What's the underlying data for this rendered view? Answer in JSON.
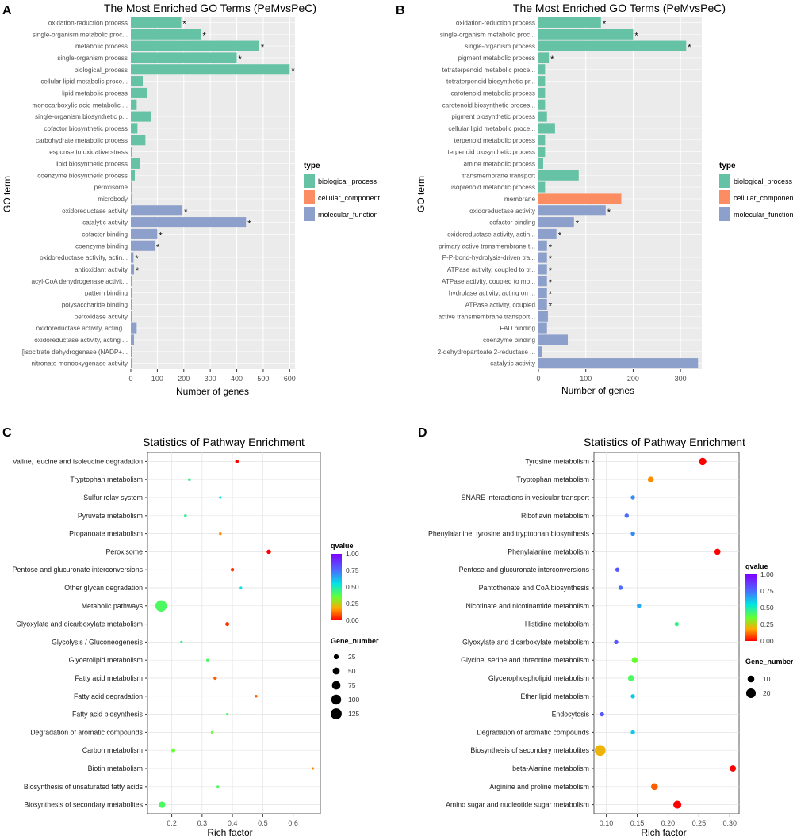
{
  "panel_labels": [
    "A",
    "B",
    "C",
    "D"
  ],
  "colors": {
    "biological_process": "#66c2a5",
    "cellular_component": "#fc8d62",
    "molecular_function": "#8da0cb",
    "panel_bg": "#ebebeb",
    "grid": "#ffffff"
  },
  "chart_data": [
    {
      "type": "bar",
      "panel": "A",
      "title": "The Most Enriched GO Terms (PeMvsPeC)",
      "xlabel": "Number of genes",
      "ylabel": "GO term",
      "xlim": [
        0,
        620
      ],
      "xticks": [
        0,
        100,
        200,
        300,
        400,
        500,
        600
      ],
      "legend": {
        "title": "type",
        "entries": [
          "biological_process",
          "cellular_component",
          "molecular_function"
        ]
      },
      "categories": [
        "oxidation-reduction process",
        "single-organism metabolic proc...",
        "metabolic process",
        "single-organism process",
        "biological_process",
        "cellular lipid metabolic proce...",
        "lipid metabolic process",
        "monocarboxylic acid metabolic ...",
        "single-organism biosynthetic p...",
        "cofactor biosynthetic process",
        "carbohydrate metabolic process",
        "response to oxidative stress",
        "lipid biosynthetic process",
        "coenzyme biosynthetic process",
        "peroxisome",
        "microbody",
        "oxidoreductase activity",
        "catalytic activity",
        "cofactor binding",
        "coenzyme binding",
        "oxidoreductase activity, actin...",
        "antioxidant activity",
        "acyl-CoA dehydrogenase activit...",
        "pattern binding",
        "polysaccharide binding",
        "peroxidase activity",
        "oxidoreductase activity, acting...",
        "oxidoreductase activity, acting ...",
        "[isocitrate dehydrogenase (NADP+...",
        "nitronate monooxygenase activity"
      ],
      "values": [
        190,
        265,
        485,
        400,
        600,
        45,
        60,
        22,
        75,
        25,
        55,
        5,
        35,
        15,
        4,
        4,
        195,
        435,
        100,
        90,
        10,
        12,
        6,
        6,
        6,
        5,
        22,
        12,
        3,
        6
      ],
      "types": [
        "biological_process",
        "biological_process",
        "biological_process",
        "biological_process",
        "biological_process",
        "biological_process",
        "biological_process",
        "biological_process",
        "biological_process",
        "biological_process",
        "biological_process",
        "biological_process",
        "biological_process",
        "biological_process",
        "cellular_component",
        "cellular_component",
        "molecular_function",
        "molecular_function",
        "molecular_function",
        "molecular_function",
        "molecular_function",
        "molecular_function",
        "molecular_function",
        "molecular_function",
        "molecular_function",
        "molecular_function",
        "molecular_function",
        "molecular_function",
        "molecular_function",
        "molecular_function"
      ],
      "significant": [
        true,
        true,
        true,
        true,
        true,
        false,
        false,
        false,
        false,
        false,
        false,
        false,
        false,
        false,
        false,
        false,
        true,
        true,
        true,
        true,
        true,
        true,
        false,
        false,
        false,
        false,
        false,
        false,
        false,
        false
      ],
      "marker": "*"
    },
    {
      "type": "bar",
      "panel": "B",
      "title": "The Most Enriched GO Terms (PeMvsPeC)",
      "xlabel": "Number of genes",
      "ylabel": "GO term",
      "xlim": [
        0,
        345
      ],
      "xticks": [
        0,
        100,
        200,
        300
      ],
      "legend": {
        "title": "type",
        "entries": [
          "biological_process",
          "cellular_component",
          "molecular_function"
        ]
      },
      "categories": [
        "oxidation-reduction process",
        "single-organism metabolic proc...",
        "single-organism process",
        "pigment metabolic process",
        "tetraterpenoid metabolic proce...",
        "tetraterpenoid biosynthetic pr...",
        "carotenoid metabolic process",
        "carotenoid biosynthetic proces...",
        "pigment biosynthetic process",
        "cellular lipid metabolic proce...",
        "terpenoid metabolic process",
        "terpenoid biosynthetic process",
        "amine metabolic process",
        "transmembrane transport",
        "isoprenoid metabolic process",
        "membrane",
        "oxidoreductase activity",
        "cofactor binding",
        "oxidoreductase activity, actin...",
        "primary active transmembrane t...",
        "P-P-bond-hydrolysis-driven tra...",
        "ATPase activity, coupled to tr...",
        "ATPase activity, coupled to mo...",
        "hydrolase activity, acting on ...",
        "ATPase activity, coupled",
        "active transmembrane transport...",
        "FAD binding",
        "coenzyme binding",
        "2-dehydropantoate 2-reductase ...",
        "catalytic activity"
      ],
      "values": [
        132,
        200,
        312,
        22,
        14,
        14,
        14,
        14,
        18,
        35,
        14,
        14,
        10,
        85,
        14,
        175,
        142,
        75,
        38,
        18,
        18,
        18,
        18,
        18,
        18,
        20,
        18,
        62,
        8,
        337
      ],
      "types": [
        "biological_process",
        "biological_process",
        "biological_process",
        "biological_process",
        "biological_process",
        "biological_process",
        "biological_process",
        "biological_process",
        "biological_process",
        "biological_process",
        "biological_process",
        "biological_process",
        "biological_process",
        "biological_process",
        "biological_process",
        "cellular_component",
        "molecular_function",
        "molecular_function",
        "molecular_function",
        "molecular_function",
        "molecular_function",
        "molecular_function",
        "molecular_function",
        "molecular_function",
        "molecular_function",
        "molecular_function",
        "molecular_function",
        "molecular_function",
        "molecular_function",
        "molecular_function"
      ],
      "significant": [
        true,
        true,
        true,
        true,
        false,
        false,
        false,
        false,
        false,
        false,
        false,
        false,
        false,
        false,
        false,
        false,
        true,
        true,
        true,
        true,
        true,
        true,
        true,
        true,
        true,
        false,
        false,
        false,
        false,
        false
      ],
      "marker": "*"
    },
    {
      "type": "scatter",
      "panel": "C",
      "title": "Statistics of Pathway Enrichment",
      "xlabel": "Rich factor",
      "xlim": [
        0.12,
        0.69
      ],
      "xticks": [
        0.2,
        0.3,
        0.4,
        0.5,
        0.6
      ],
      "xtick_labels": [
        "0.2",
        "0.3",
        "0.4",
        "0.5",
        "0.6"
      ],
      "categories": [
        "Valine, leucine and isoleucine degradation",
        "Tryptophan metabolism",
        "Sulfur relay system",
        "Pyruvate metabolism",
        "Propanoate metabolism",
        "Peroxisome",
        "Pentose and glucuronate interconversions",
        "Other glycan degradation",
        "Metabolic pathways",
        "Glyoxylate and dicarboxylate metabolism",
        "Glycolysis / Gluconeogenesis",
        "Glycerolipid metabolism",
        "Fatty acid metabolism",
        "Fatty acid degradation",
        "Fatty acid biosynthesis",
        "Degradation of aromatic compounds",
        "Carbon metabolism",
        "Biotin metabolism",
        "Biosynthesis of unsaturated fatty acids",
        "Biosynthesis of secondary metabolites"
      ],
      "x": [
        0.415,
        0.258,
        0.36,
        0.245,
        0.36,
        0.52,
        0.4,
        0.428,
        0.165,
        0.383,
        0.232,
        0.318,
        0.343,
        0.478,
        0.383,
        0.333,
        0.205,
        0.665,
        0.352,
        0.168
      ],
      "qvalue": [
        0.0,
        0.45,
        0.55,
        0.45,
        0.15,
        0.0,
        0.05,
        0.55,
        0.4,
        0.05,
        0.45,
        0.4,
        0.1,
        0.1,
        0.4,
        0.35,
        0.35,
        0.15,
        0.4,
        0.4
      ],
      "gene_number": [
        14,
        8,
        6,
        8,
        8,
        20,
        12,
        4,
        135,
        16,
        6,
        8,
        12,
        8,
        6,
        6,
        16,
        4,
        6,
        45
      ],
      "legend": {
        "color_title": "qvalue",
        "color_ticks": [
          "1.00",
          "0.75",
          "0.50",
          "0.25",
          "0.00"
        ],
        "size_title": "Gene_number",
        "size_values": [
          25,
          50,
          75,
          100,
          125
        ],
        "size_labels": [
          "25",
          "50",
          "75",
          "100",
          "125"
        ]
      }
    },
    {
      "type": "scatter",
      "panel": "D",
      "title": "Statistics of Pathway Enrichment",
      "xlabel": "Rich factor",
      "xlim": [
        0.08,
        0.315
      ],
      "xticks": [
        0.1,
        0.15,
        0.2,
        0.25,
        0.3
      ],
      "xtick_labels": [
        "0.10",
        "0.15",
        "0.20",
        "0.25",
        "0.30"
      ],
      "categories": [
        "Tyrosine metabolism",
        "Tryptophan metabolism",
        "SNARE interactions in vesicular transport",
        "Riboflavin metabolism",
        "Phenylalanine, tyrosine and tryptophan biosynthesis",
        "Phenylalanine metabolism",
        "Pentose and glucuronate interconversions",
        "Pantothenate and CoA biosynthesis",
        "Nicotinate and nicotinamide metabolism",
        "Histidine metabolism",
        "Glyoxylate and dicarboxylate metabolism",
        "Glycine, serine and threonine metabolism",
        "Glycerophospholipid metabolism",
        "Ether lipid metabolism",
        "Endocytosis",
        "Degradation of aromatic compounds",
        "Biosynthesis of secondary metabolites",
        "beta-Alanine metabolism",
        "Arginine and proline metabolism",
        "Amino sugar and nucleotide sugar metabolism"
      ],
      "x": [
        0.256,
        0.172,
        0.143,
        0.133,
        0.143,
        0.28,
        0.118,
        0.123,
        0.153,
        0.214,
        0.116,
        0.146,
        0.14,
        0.143,
        0.093,
        0.143,
        0.09,
        0.305,
        0.178,
        0.215
      ],
      "qvalue": [
        0.0,
        0.15,
        0.7,
        0.75,
        0.7,
        0.0,
        0.8,
        0.75,
        0.65,
        0.45,
        0.8,
        0.35,
        0.4,
        0.6,
        0.8,
        0.6,
        0.2,
        0.0,
        0.1,
        0.0
      ],
      "gene_number": [
        12,
        8,
        4,
        4,
        4,
        8,
        4,
        4,
        4,
        4,
        4,
        8,
        8,
        4,
        4,
        4,
        26,
        8,
        10,
        14
      ],
      "legend": {
        "color_title": "qvalue",
        "color_ticks": [
          "1.00",
          "0.75",
          "0.50",
          "0.25",
          "0.00"
        ],
        "size_title": "Gene_number",
        "size_values": [
          10,
          20
        ],
        "size_labels": [
          "10",
          "20"
        ]
      }
    }
  ]
}
